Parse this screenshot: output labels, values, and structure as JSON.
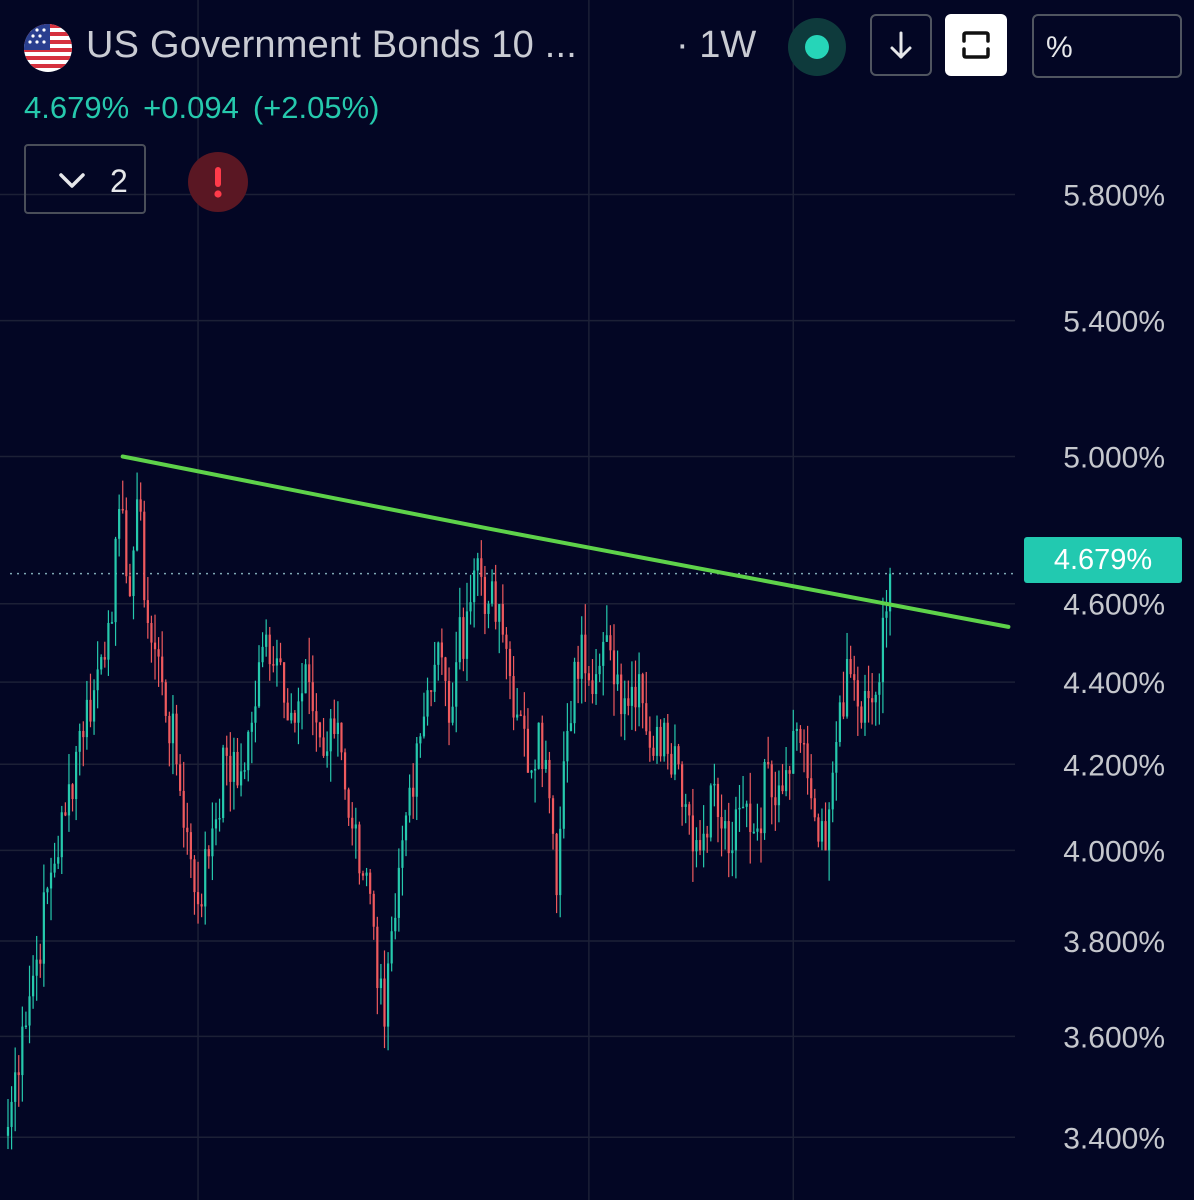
{
  "header": {
    "title": "US Government Bonds 10 ...",
    "interval": "· 1W",
    "scale_label": "%",
    "icons": {
      "flag": "us-flag-icon",
      "live": "live-dot-icon",
      "download": "arrow-down-icon",
      "expand": "expand-icon",
      "collapse": "chevron-down-icon",
      "alert": "alert-icon"
    }
  },
  "quote": {
    "last": "4.679%",
    "change": "+0.094",
    "change_percent": "(+2.05%)"
  },
  "indicators": {
    "collapsed_count": "2"
  },
  "colors": {
    "background": "#030624",
    "up": "#26c9ad",
    "down": "#ef5a5e",
    "trendline": "#5ed24a",
    "price_tag": "#22c9b0",
    "grid": "#1c2036"
  },
  "chart_data": {
    "type": "candlestick",
    "interval": "1W",
    "scale": "log",
    "ylim": [
      3.3,
      6.05
    ],
    "y_ticks": [
      "5.800%",
      "5.400%",
      "5.000%",
      "4.600%",
      "4.400%",
      "4.200%",
      "4.000%",
      "3.800%",
      "3.600%",
      "3.400%"
    ],
    "y_tick_values": [
      5.8,
      5.4,
      5.0,
      4.6,
      4.4,
      4.2,
      4.0,
      3.8,
      3.6,
      3.4
    ],
    "last_price": 4.679,
    "last_price_label": "4.679%",
    "grid": true,
    "pivots": [
      {
        "i": 0,
        "v": 3.42
      },
      {
        "i": 4,
        "v": 3.62
      },
      {
        "i": 8,
        "v": 3.76
      },
      {
        "i": 12,
        "v": 3.95
      },
      {
        "i": 16,
        "v": 4.08
      },
      {
        "i": 20,
        "v": 4.28
      },
      {
        "i": 24,
        "v": 4.38
      },
      {
        "i": 28,
        "v": 4.55
      },
      {
        "i": 32,
        "v": 4.85
      },
      {
        "i": 34,
        "v": 4.62
      },
      {
        "i": 36,
        "v": 4.88
      },
      {
        "i": 39,
        "v": 4.55
      },
      {
        "i": 43,
        "v": 4.4
      },
      {
        "i": 47,
        "v": 4.2
      },
      {
        "i": 51,
        "v": 3.98
      },
      {
        "i": 53,
        "v": 3.88
      },
      {
        "i": 57,
        "v": 4.05
      },
      {
        "i": 61,
        "v": 4.22
      },
      {
        "i": 64,
        "v": 4.15
      },
      {
        "i": 68,
        "v": 4.3
      },
      {
        "i": 72,
        "v": 4.52
      },
      {
        "i": 76,
        "v": 4.45
      },
      {
        "i": 80,
        "v": 4.3
      },
      {
        "i": 84,
        "v": 4.4
      },
      {
        "i": 88,
        "v": 4.22
      },
      {
        "i": 92,
        "v": 4.3
      },
      {
        "i": 96,
        "v": 4.05
      },
      {
        "i": 100,
        "v": 3.95
      },
      {
        "i": 103,
        "v": 3.7
      },
      {
        "i": 105,
        "v": 3.62
      },
      {
        "i": 108,
        "v": 3.85
      },
      {
        "i": 111,
        "v": 4.08
      },
      {
        "i": 114,
        "v": 4.25
      },
      {
        "i": 117,
        "v": 4.38
      },
      {
        "i": 120,
        "v": 4.5
      },
      {
        "i": 123,
        "v": 4.3
      },
      {
        "i": 125,
        "v": 4.45
      },
      {
        "i": 128,
        "v": 4.58
      },
      {
        "i": 131,
        "v": 4.72
      },
      {
        "i": 134,
        "v": 4.6
      },
      {
        "i": 138,
        "v": 4.52
      },
      {
        "i": 142,
        "v": 4.32
      },
      {
        "i": 145,
        "v": 4.18
      },
      {
        "i": 148,
        "v": 4.3
      },
      {
        "i": 151,
        "v": 4.12
      },
      {
        "i": 153,
        "v": 3.9
      },
      {
        "i": 156,
        "v": 4.28
      },
      {
        "i": 160,
        "v": 4.52
      },
      {
        "i": 164,
        "v": 4.42
      },
      {
        "i": 168,
        "v": 4.48
      },
      {
        "i": 172,
        "v": 4.36
      },
      {
        "i": 176,
        "v": 4.42
      },
      {
        "i": 180,
        "v": 4.22
      },
      {
        "i": 183,
        "v": 4.3
      },
      {
        "i": 187,
        "v": 4.2
      },
      {
        "i": 190,
        "v": 4.08
      },
      {
        "i": 193,
        "v": 4.0
      },
      {
        "i": 196,
        "v": 4.15
      },
      {
        "i": 199,
        "v": 4.05
      },
      {
        "i": 202,
        "v": 4.0
      },
      {
        "i": 205,
        "v": 4.1
      },
      {
        "i": 209,
        "v": 4.05
      },
      {
        "i": 212,
        "v": 4.2
      },
      {
        "i": 215,
        "v": 4.15
      },
      {
        "i": 219,
        "v": 4.28
      },
      {
        "i": 222,
        "v": 4.25
      },
      {
        "i": 224,
        "v": 4.12
      },
      {
        "i": 226,
        "v": 4.02
      },
      {
        "i": 228,
        "v": 4.0
      },
      {
        "i": 230,
        "v": 4.18
      },
      {
        "i": 232,
        "v": 4.35
      },
      {
        "i": 235,
        "v": 4.42
      },
      {
        "i": 238,
        "v": 4.3
      },
      {
        "i": 241,
        "v": 4.35
      },
      {
        "i": 243,
        "v": 4.4
      },
      {
        "i": 245,
        "v": 4.58
      },
      {
        "i": 246,
        "v": 4.679
      }
    ],
    "trendline": [
      {
        "i": 32,
        "v": 5.0
      },
      {
        "i": 134,
        "v": 4.8
      },
      {
        "i": 279,
        "v": 4.54
      }
    ],
    "x_grid_bars": [
      53,
      162,
      219
    ],
    "n_bars": 247,
    "x_span_bars": 280
  }
}
